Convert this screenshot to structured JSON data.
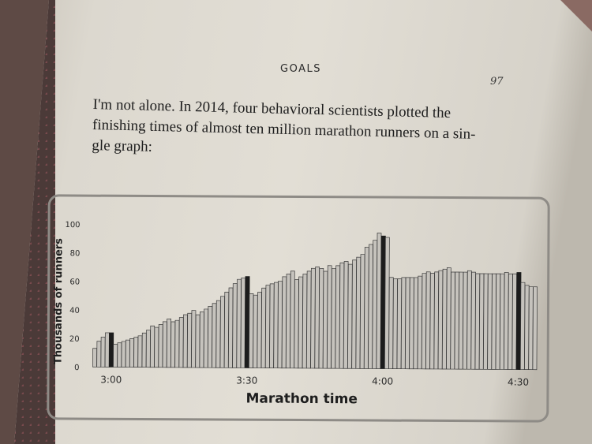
{
  "header": {
    "running_head": "GOALS",
    "page_number": "97"
  },
  "body": {
    "lines": [
      "I'm not alone. In 2014, four behavioral scientists plotted the",
      "finishing times of almost ten million marathon runners on a sin-",
      "gle graph:"
    ]
  },
  "colors": {
    "bar_fill": "#c6c3bd",
    "bar_stroke": "#3a3a3a",
    "highlight_bar": "#1c1c1c"
  },
  "chart_data": {
    "type": "bar",
    "title": "",
    "xlabel": "Marathon time",
    "ylabel": "Thousands of runners",
    "ylim": [
      0,
      100
    ],
    "yticks": [
      0,
      20,
      40,
      60,
      80,
      100
    ],
    "xticks": [
      "3:00",
      "3:30",
      "4:00",
      "4:30"
    ],
    "xtick_indices": [
      4,
      37,
      70,
      103
    ],
    "grid": false,
    "values": [
      13,
      18,
      21,
      24,
      24,
      16,
      17,
      18,
      19,
      20,
      21,
      22,
      24,
      26,
      29,
      28,
      30,
      32,
      34,
      32,
      33,
      35,
      37,
      38,
      40,
      37,
      39,
      41,
      43,
      45,
      47,
      50,
      53,
      56,
      59,
      62,
      63,
      64,
      52,
      51,
      53,
      56,
      58,
      59,
      60,
      61,
      64,
      66,
      68,
      62,
      64,
      66,
      68,
      70,
      71,
      70,
      68,
      72,
      70,
      72,
      74,
      75,
      73,
      76,
      78,
      80,
      85,
      87,
      90,
      95,
      93,
      92,
      64,
      63,
      63,
      64,
      64,
      64,
      64,
      65,
      67,
      68,
      67,
      68,
      69,
      70,
      71,
      68,
      68,
      68,
      68,
      69,
      68,
      67,
      67,
      67,
      67,
      67,
      67,
      67,
      68,
      67,
      67,
      68,
      61,
      59,
      58,
      58
    ],
    "highlight_indices": [
      4,
      37,
      70,
      103
    ]
  }
}
